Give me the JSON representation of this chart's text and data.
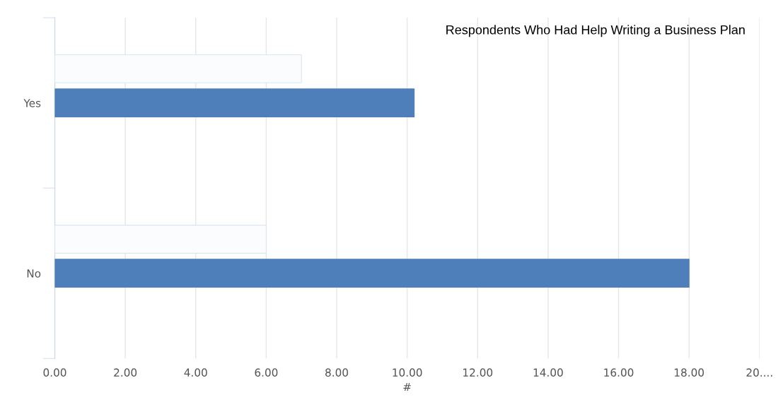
{
  "chart_data": {
    "type": "bar",
    "orientation": "horizontal",
    "title": "Respondents Who Had Help Writing a Business Plan",
    "xlabel": "#",
    "categories": [
      "Yes",
      "No"
    ],
    "series": [
      {
        "color": "#fbfcfe",
        "values": [
          7,
          6
        ]
      },
      {
        "color": "#4f7fba",
        "values": [
          10.2,
          18
        ]
      }
    ],
    "xlim": [
      0,
      20
    ],
    "xticks": [
      {
        "value": 0,
        "label": "0.00"
      },
      {
        "value": 2,
        "label": "2.00"
      },
      {
        "value": 4,
        "label": "4.00"
      },
      {
        "value": 6,
        "label": "6.00"
      },
      {
        "value": 8,
        "label": "8.00"
      },
      {
        "value": 10,
        "label": "10.00"
      },
      {
        "value": 12,
        "label": "12.00"
      },
      {
        "value": 14,
        "label": "14.00"
      },
      {
        "value": 16,
        "label": "16.00"
      },
      {
        "value": 18,
        "label": "18.00"
      },
      {
        "value": 20,
        "label": "20...."
      }
    ],
    "grid": "x",
    "legend": false
  }
}
